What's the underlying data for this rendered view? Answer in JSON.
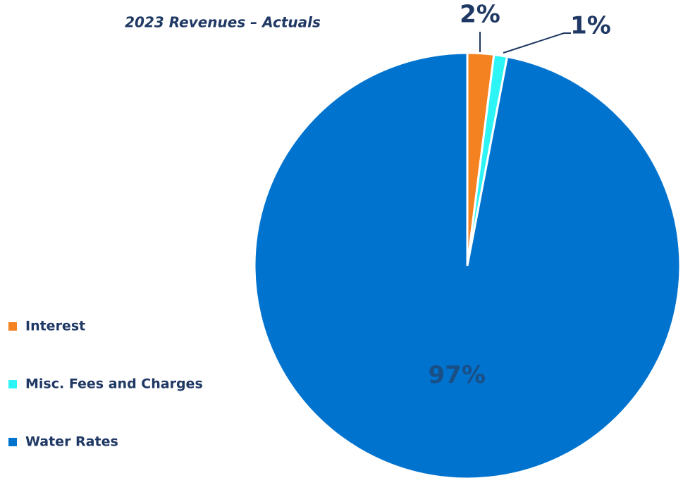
{
  "chart_data": {
    "type": "pie",
    "title": "2023 Revenues – Actuals",
    "categories": [
      "Interest",
      "Misc. Fees and Charges",
      "Water Rates"
    ],
    "values": [
      2,
      1,
      97
    ],
    "value_labels": [
      "2%",
      "1%",
      "97%"
    ],
    "colors": [
      "#f58220",
      "#2ef5f5",
      "#0073cf"
    ],
    "legend": "left"
  }
}
